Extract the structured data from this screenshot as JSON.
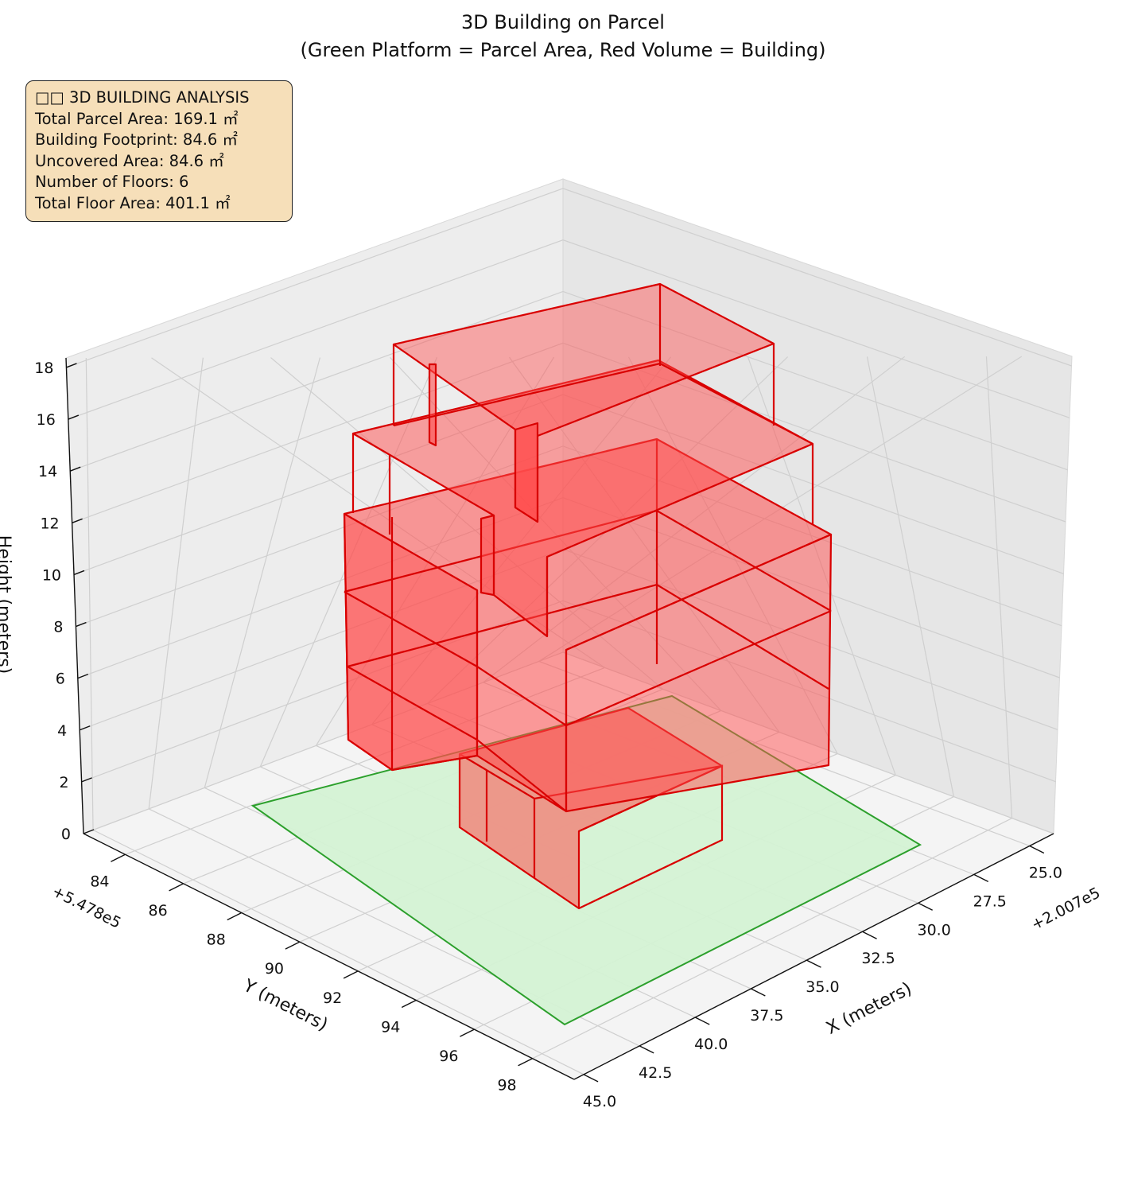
{
  "chart_data": {
    "type": "3d-bar",
    "title": "3D Building on Parcel",
    "subtitle": "(Green Platform = Parcel Area, Red Volume = Building)",
    "xlabel": "X (meters)",
    "ylabel": "Y (meters)",
    "zlabel": "Height (meters)",
    "x_offset_label": "+2.007e5",
    "y_offset_label": "+5.478e5",
    "x_ticks": [
      "25.0",
      "27.5",
      "30.0",
      "32.5",
      "35.0",
      "37.5",
      "40.0",
      "42.5",
      "45.0"
    ],
    "y_ticks": [
      "84",
      "86",
      "88",
      "90",
      "92",
      "94",
      "96",
      "98"
    ],
    "z_ticks": [
      "0",
      "2",
      "4",
      "6",
      "8",
      "10",
      "12",
      "14",
      "16",
      "18"
    ],
    "grid": true,
    "series": [
      {
        "name": "Parcel Area",
        "color": "#2ca02c",
        "fill": "#d4f2d4"
      },
      {
        "name": "Building",
        "color": "#d90000",
        "fill": "#ff4d4d"
      }
    ]
  },
  "info": {
    "title": "□□ 3D BUILDING ANALYSIS",
    "lines": [
      "Total Parcel Area: 169.1 ㎡",
      "Building Footprint: 84.6 ㎡",
      "Uncovered Area: 84.6 ㎡",
      "Number of Floors: 6",
      "Total Floor Area: 401.1 ㎡"
    ]
  }
}
